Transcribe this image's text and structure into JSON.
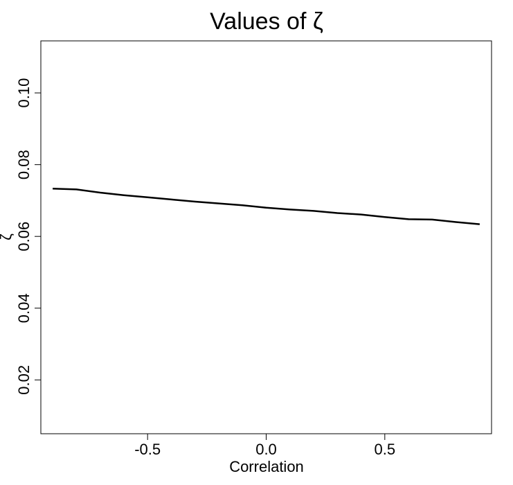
{
  "chart_data": {
    "type": "line",
    "title": "Values of ζ",
    "xlabel": "Correlation",
    "ylabel": "ζ",
    "xlim": [
      -0.95,
      0.95
    ],
    "ylim": [
      0.005,
      0.1145
    ],
    "xticks": [
      -0.5,
      0.0,
      0.5
    ],
    "xtick_labels": [
      "-0.5",
      "0.0",
      "0.5"
    ],
    "yticks": [
      0.02,
      0.04,
      0.06,
      0.08,
      0.1
    ],
    "ytick_labels": [
      "0.02",
      "0.04",
      "0.06",
      "0.08",
      "0.10"
    ],
    "grid": false,
    "legend": "none",
    "series": [
      {
        "color": "#000000",
        "x": [
          -0.9,
          -0.8,
          -0.7,
          -0.6,
          -0.5,
          -0.4,
          -0.3,
          -0.2,
          -0.1,
          0.0,
          0.1,
          0.2,
          0.3,
          0.4,
          0.5,
          0.6,
          0.7,
          0.8,
          0.9
        ],
        "y": [
          0.0733,
          0.0731,
          0.0722,
          0.0715,
          0.0709,
          0.0703,
          0.0697,
          0.0692,
          0.0687,
          0.068,
          0.0675,
          0.0671,
          0.0665,
          0.0661,
          0.0654,
          0.0648,
          0.0647,
          0.064,
          0.0634
        ]
      }
    ]
  }
}
